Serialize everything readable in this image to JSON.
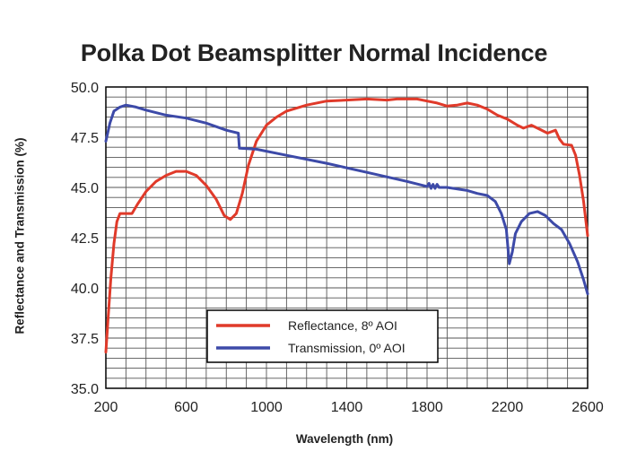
{
  "chart_data": {
    "type": "line",
    "title": "Polka Dot Beamsplitter Normal Incidence",
    "xlabel": "Wavelength (nm)",
    "ylabel": "Reflectance and Transmission (%)",
    "xlim": [
      200,
      2600
    ],
    "ylim": [
      35.0,
      50.0
    ],
    "x_ticks": [
      200,
      600,
      1000,
      1400,
      1800,
      2200,
      2600
    ],
    "y_ticks": [
      "50.0",
      "47.5",
      "45.0",
      "42.5",
      "40.0",
      "37.5",
      "35.0"
    ],
    "grid": true,
    "grid_x_step": 100,
    "grid_y_step": 0.5,
    "legend_position": "bottom-center",
    "series": [
      {
        "name": "Reflectance, 8º AOI",
        "color": "#e03a2a",
        "points": [
          [
            200,
            36.8
          ],
          [
            210,
            38.3
          ],
          [
            225,
            40.5
          ],
          [
            240,
            42.2
          ],
          [
            255,
            43.3
          ],
          [
            270,
            43.7
          ],
          [
            330,
            43.7
          ],
          [
            360,
            44.2
          ],
          [
            400,
            44.8
          ],
          [
            450,
            45.3
          ],
          [
            500,
            45.6
          ],
          [
            550,
            45.8
          ],
          [
            600,
            45.8
          ],
          [
            650,
            45.6
          ],
          [
            700,
            45.1
          ],
          [
            750,
            44.4
          ],
          [
            790,
            43.6
          ],
          [
            820,
            43.4
          ],
          [
            850,
            43.7
          ],
          [
            880,
            44.7
          ],
          [
            910,
            46.1
          ],
          [
            950,
            47.3
          ],
          [
            1000,
            48.1
          ],
          [
            1050,
            48.5
          ],
          [
            1100,
            48.8
          ],
          [
            1200,
            49.1
          ],
          [
            1300,
            49.3
          ],
          [
            1400,
            49.35
          ],
          [
            1500,
            49.4
          ],
          [
            1600,
            49.35
          ],
          [
            1650,
            49.4
          ],
          [
            1750,
            49.4
          ],
          [
            1800,
            49.3
          ],
          [
            1850,
            49.2
          ],
          [
            1900,
            49.05
          ],
          [
            1950,
            49.1
          ],
          [
            2000,
            49.2
          ],
          [
            2050,
            49.1
          ],
          [
            2100,
            48.9
          ],
          [
            2150,
            48.6
          ],
          [
            2200,
            48.4
          ],
          [
            2250,
            48.1
          ],
          [
            2280,
            47.95
          ],
          [
            2320,
            48.1
          ],
          [
            2360,
            47.9
          ],
          [
            2400,
            47.7
          ],
          [
            2440,
            47.85
          ],
          [
            2460,
            47.4
          ],
          [
            2480,
            47.15
          ],
          [
            2520,
            47.1
          ],
          [
            2540,
            46.6
          ],
          [
            2560,
            45.6
          ],
          [
            2580,
            44.3
          ],
          [
            2600,
            42.6
          ]
        ]
      },
      {
        "name": "Transmission, 0º AOI",
        "color": "#3d4aa8",
        "points": [
          [
            200,
            47.3
          ],
          [
            220,
            48.2
          ],
          [
            240,
            48.8
          ],
          [
            270,
            49.0
          ],
          [
            300,
            49.1
          ],
          [
            350,
            49.0
          ],
          [
            400,
            48.85
          ],
          [
            500,
            48.6
          ],
          [
            600,
            48.45
          ],
          [
            700,
            48.2
          ],
          [
            800,
            47.85
          ],
          [
            860,
            47.7
          ],
          [
            865,
            46.95
          ],
          [
            950,
            46.9
          ],
          [
            1100,
            46.6
          ],
          [
            1300,
            46.2
          ],
          [
            1500,
            45.75
          ],
          [
            1700,
            45.3
          ],
          [
            1800,
            45.05
          ],
          [
            1810,
            45.2
          ],
          [
            1820,
            44.95
          ],
          [
            1830,
            45.15
          ],
          [
            1840,
            44.95
          ],
          [
            1850,
            45.15
          ],
          [
            1860,
            45.0
          ],
          [
            1900,
            45.0
          ],
          [
            2000,
            44.85
          ],
          [
            2050,
            44.7
          ],
          [
            2100,
            44.6
          ],
          [
            2140,
            44.3
          ],
          [
            2170,
            43.7
          ],
          [
            2195,
            42.9
          ],
          [
            2210,
            41.2
          ],
          [
            2225,
            41.8
          ],
          [
            2240,
            42.7
          ],
          [
            2270,
            43.3
          ],
          [
            2310,
            43.7
          ],
          [
            2350,
            43.8
          ],
          [
            2390,
            43.6
          ],
          [
            2430,
            43.2
          ],
          [
            2470,
            42.9
          ],
          [
            2510,
            42.2
          ],
          [
            2550,
            41.3
          ],
          [
            2580,
            40.4
          ],
          [
            2600,
            39.7
          ]
        ]
      }
    ]
  }
}
